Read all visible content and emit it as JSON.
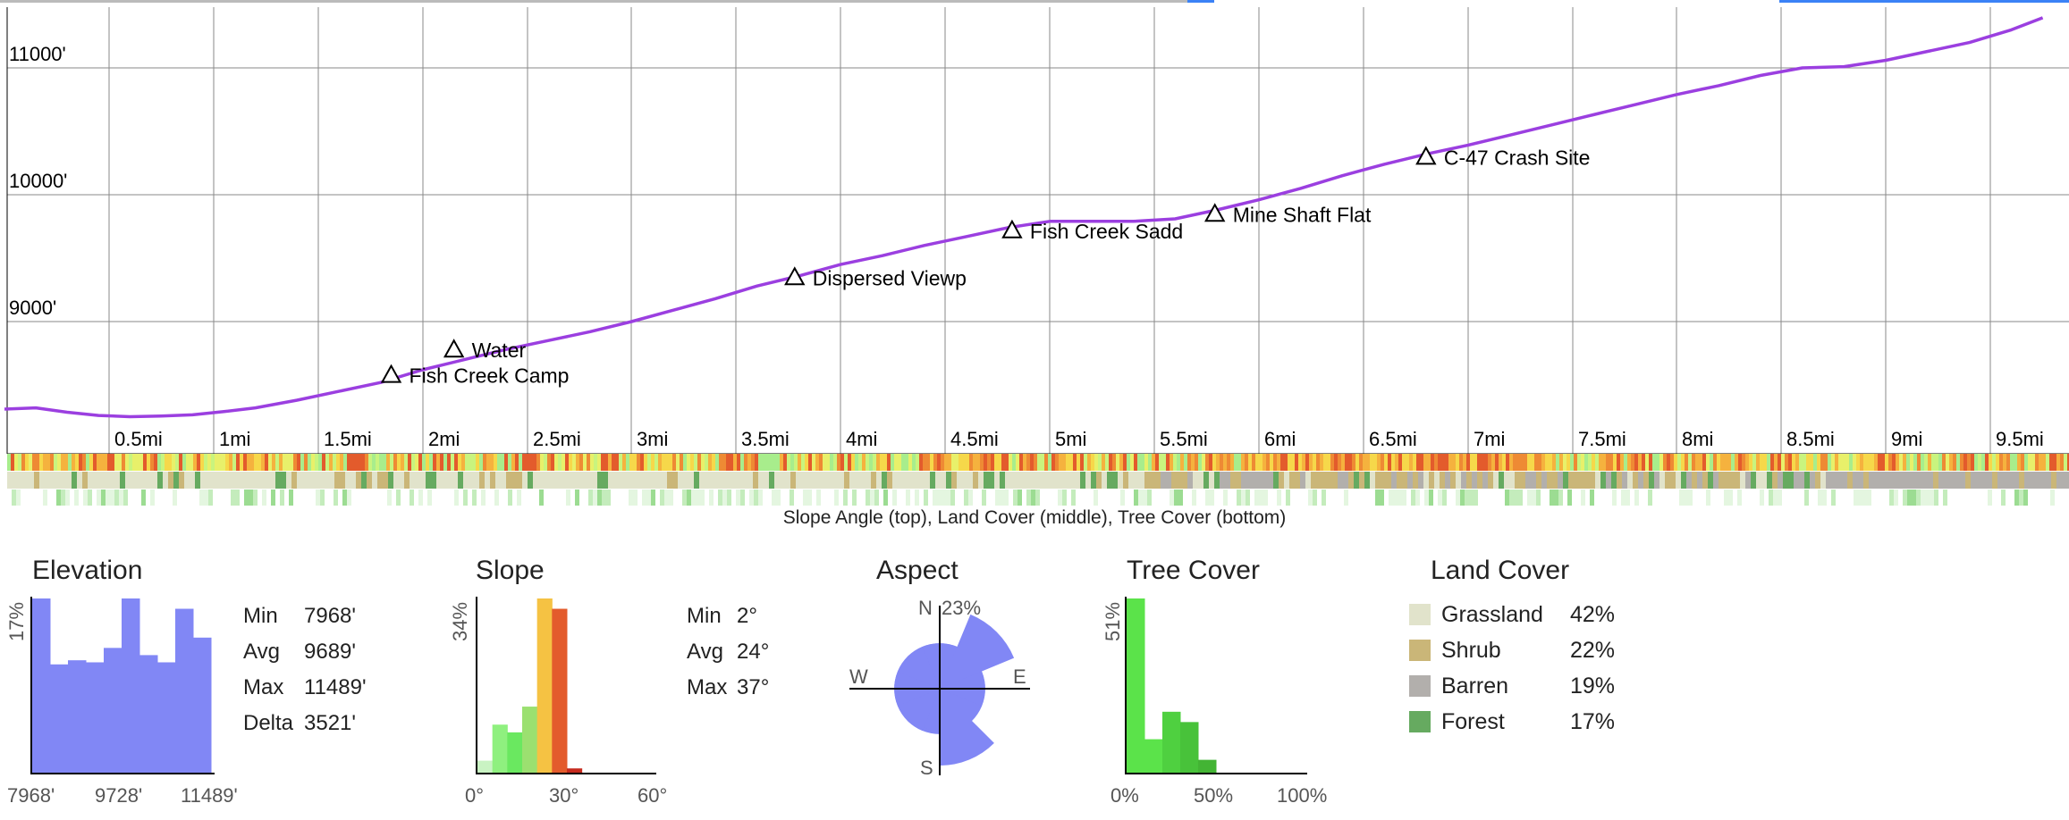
{
  "chart_data": [
    {
      "type": "line",
      "name": "elevation-profile",
      "x_unit": "mi",
      "y_unit": "ft",
      "xlim": [
        0,
        9.75
      ],
      "ylim": [
        8200,
        11600
      ],
      "y_ticks": [
        9000,
        10000,
        11000
      ],
      "y_tick_labels": [
        "9000'",
        "10000'",
        "11000'"
      ],
      "x_ticks": [
        0.5,
        1,
        1.5,
        2,
        2.5,
        3,
        3.5,
        4,
        4.5,
        5,
        5.5,
        6,
        6.5,
        7,
        7.5,
        8,
        8.5,
        9,
        9.5
      ],
      "x_tick_labels": [
        "0.5mi",
        "1mi",
        "1.5mi",
        "2mi",
        "2.5mi",
        "3mi",
        "3.5mi",
        "4mi",
        "4.5mi",
        "5mi",
        "5.5mi",
        "6mi",
        "6.5mi",
        "7mi",
        "7.5mi",
        "8mi",
        "8.5mi",
        "9mi",
        "9.5mi"
      ],
      "grid": true,
      "line_color": "#9b3fe0",
      "x": [
        0,
        0.15,
        0.3,
        0.45,
        0.6,
        0.75,
        0.9,
        1.05,
        1.2,
        1.4,
        1.6,
        1.8,
        2.0,
        2.2,
        2.4,
        2.6,
        2.8,
        3.0,
        3.2,
        3.4,
        3.6,
        3.8,
        4.0,
        4.2,
        4.4,
        4.6,
        4.8,
        5.0,
        5.2,
        5.4,
        5.6,
        5.8,
        6.0,
        6.2,
        6.4,
        6.6,
        6.8,
        7.0,
        7.2,
        7.4,
        7.6,
        7.8,
        8.0,
        8.2,
        8.4,
        8.6,
        8.8,
        9.0,
        9.2,
        9.4,
        9.6,
        9.75
      ],
      "y": [
        8310,
        8320,
        8285,
        8260,
        8250,
        8255,
        8265,
        8290,
        8320,
        8380,
        8450,
        8520,
        8620,
        8700,
        8780,
        8850,
        8920,
        9000,
        9090,
        9180,
        9280,
        9360,
        9450,
        9520,
        9600,
        9670,
        9740,
        9790,
        9790,
        9790,
        9810,
        9880,
        9960,
        10050,
        10150,
        10240,
        10320,
        10390,
        10470,
        10550,
        10630,
        10710,
        10790,
        10860,
        10940,
        11000,
        11010,
        11060,
        11130,
        11200,
        11300,
        11395
      ],
      "annotations": [
        {
          "label": "Fish Creek Camp",
          "x": 1.85,
          "y": 8580
        },
        {
          "label": "Water",
          "x": 2.15,
          "y": 8780
        },
        {
          "label": "Dispersed Viewp",
          "x": 3.78,
          "y": 9350
        },
        {
          "label": "Fish Creek Sadd",
          "x": 4.82,
          "y": 9720
        },
        {
          "label": "Mine Shaft Flat",
          "x": 5.79,
          "y": 9850
        },
        {
          "label": "C-47 Crash Site",
          "x": 6.8,
          "y": 10300
        }
      ]
    },
    {
      "type": "bar",
      "name": "elevation-histogram",
      "title": "Elevation",
      "ylabel": "17%",
      "x_tick_labels": [
        "7968'",
        "9728'",
        "11489'"
      ],
      "values": [
        17,
        10.6,
        11.0,
        10.8,
        12.2,
        17,
        11.5,
        10.8,
        16,
        13.2
      ],
      "ylim": [
        0,
        17
      ],
      "color": "#8187f5"
    },
    {
      "type": "bar",
      "name": "slope-histogram",
      "title": "Slope",
      "ylabel": "34%",
      "x_tick_labels": [
        "0°",
        "30°",
        "60°"
      ],
      "bin_width_deg": 5,
      "values": [
        2.5,
        9.5,
        8,
        13,
        34,
        32,
        1,
        0,
        0,
        0,
        0,
        0
      ],
      "colors": [
        "#c9f3c3",
        "#8ff07f",
        "#6ae860",
        "#9be070",
        "#f5c243",
        "#e35b2c",
        "#c62a1e",
        "#c62a1e",
        "#c62a1e",
        "#c62a1e",
        "#c62a1e",
        "#c62a1e"
      ],
      "ylim": [
        0,
        34
      ]
    },
    {
      "type": "polar",
      "name": "aspect-rose",
      "title": "Aspect",
      "max_label": "23%",
      "direction_labels": [
        "N",
        "E",
        "S",
        "W"
      ],
      "sectors": [
        {
          "dir": "N",
          "value": 13
        },
        {
          "dir": "NE",
          "value": 23
        },
        {
          "dir": "E",
          "value": 13
        },
        {
          "dir": "SE",
          "value": 13
        },
        {
          "dir": "S",
          "value": 12
        },
        {
          "dir": "SSE",
          "value": 22
        },
        {
          "dir": "SW",
          "value": 13
        },
        {
          "dir": "W",
          "value": 13
        },
        {
          "dir": "NW",
          "value": 13
        }
      ],
      "color": "#8187f5"
    },
    {
      "type": "bar",
      "name": "tree-cover-histogram",
      "title": "Tree Cover",
      "ylabel": "51%",
      "x_tick_labels": [
        "0%",
        "50%",
        "100%"
      ],
      "bin_width_pct": 10,
      "values": [
        51,
        10,
        18,
        15,
        4,
        0,
        0,
        0,
        0,
        0
      ],
      "colors": [
        "#5be34a",
        "#5be34a",
        "#4fd040",
        "#48c23a",
        "#43b434",
        "#3aa02e",
        "#3aa02e",
        "#3aa02e",
        "#3aa02e",
        "#3aa02e"
      ],
      "ylim": [
        0,
        51
      ]
    }
  ],
  "stats": {
    "elevation": {
      "min_label": "Min",
      "min": "7968'",
      "avg_label": "Avg",
      "avg": "9689'",
      "max_label": "Max",
      "max": "11489'",
      "delta_label": "Delta",
      "delta": "3521'"
    },
    "slope": {
      "min_label": "Min",
      "min": "2°",
      "avg_label": "Avg",
      "avg": "24°",
      "max_label": "Max",
      "max": "37°"
    }
  },
  "strip_caption": "Slope Angle (top), Land Cover (middle), Tree Cover (bottom)",
  "land_cover": {
    "title": "Land Cover",
    "items": [
      {
        "name": "Grassland",
        "pct": "42%",
        "color": "#e1e3cb"
      },
      {
        "name": "Shrub",
        "pct": "22%",
        "color": "#cab678"
      },
      {
        "name": "Barren",
        "pct": "19%",
        "color": "#b2afac"
      },
      {
        "name": "Forest",
        "pct": "17%",
        "color": "#66aa60"
      }
    ]
  },
  "colors": {
    "grid": "#8a8a8a",
    "axis": "#000",
    "link": "#3b82f6"
  }
}
